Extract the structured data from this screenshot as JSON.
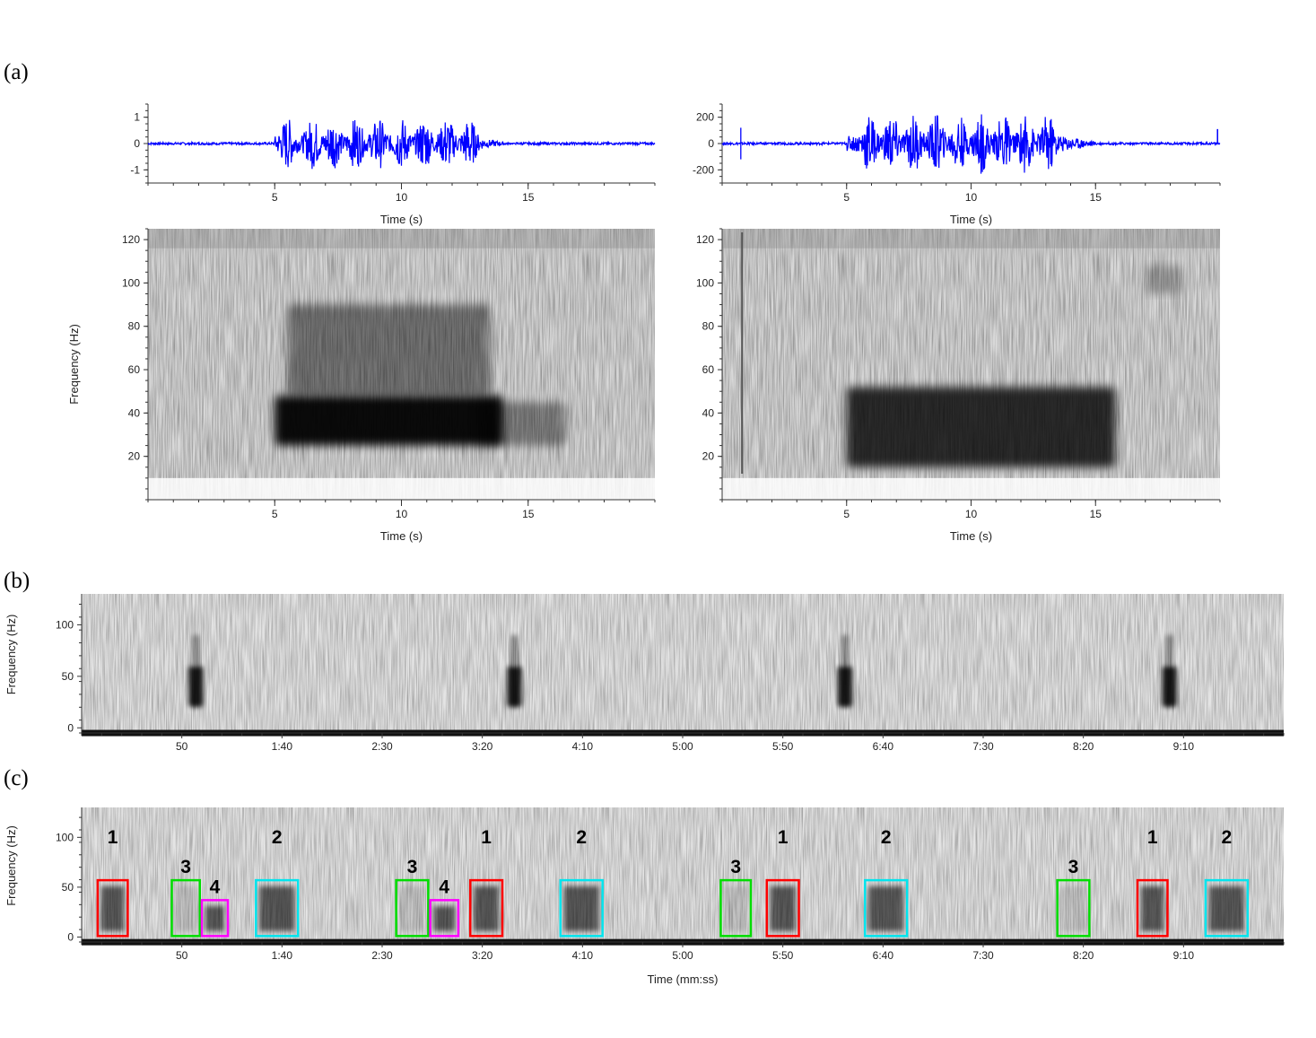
{
  "panel_labels": [
    "(a)",
    "(b)",
    "(c)"
  ],
  "chart_data": [
    {
      "panel": "(a)",
      "position": "top-left",
      "type": "line",
      "description": "waveform",
      "xlabel": "Time (s)",
      "ylabel": "",
      "xlim": [
        0,
        20
      ],
      "ylim": [
        -1.5,
        1.5
      ],
      "xticks": [
        5,
        10,
        15
      ],
      "yticks": [
        1,
        0,
        -1
      ],
      "series": [
        {
          "color": "#0000ff",
          "signal_x": [
            5.0,
            14.5
          ],
          "peak_amplitude": 1.0,
          "bursts_x": [
            5.5,
            6.5,
            7.3,
            8.2,
            9.1,
            10.0,
            10.9,
            11.8,
            12.7
          ]
        }
      ]
    },
    {
      "panel": "(a)",
      "position": "top-right",
      "type": "line",
      "description": "waveform",
      "xlabel": "Time (s)",
      "ylabel": "",
      "xlim": [
        0,
        20
      ],
      "ylim": [
        -300,
        300
      ],
      "xticks": [
        5,
        10,
        15
      ],
      "yticks": [
        200,
        0,
        -200
      ],
      "series": [
        {
          "color": "#0000ff",
          "signal_x": [
            5.0,
            15.5
          ],
          "peak_amplitude": 230,
          "bursts_x": [
            5.9,
            6.8,
            7.7,
            8.6,
            9.5,
            10.4,
            11.3,
            12.2,
            13.1
          ]
        }
      ]
    },
    {
      "panel": "(a)",
      "position": "bottom-left",
      "type": "heatmap",
      "description": "spectrogram",
      "xlabel": "Time (s)",
      "ylabel": "Frequency (Hz)",
      "xlim": [
        0,
        20
      ],
      "ylim": [
        0,
        125
      ],
      "xticks": [
        5,
        10,
        15
      ],
      "yticks": [
        120,
        100,
        80,
        60,
        40,
        20
      ],
      "energy": [
        {
          "t0": 5.0,
          "t1": 14.0,
          "f0": 25,
          "f1": 48,
          "intensity": 0.95
        },
        {
          "t0": 5.5,
          "t1": 13.5,
          "f0": 48,
          "f1": 90,
          "intensity": 0.45
        },
        {
          "t0": 13.0,
          "t1": 16.5,
          "f0": 25,
          "f1": 45,
          "intensity": 0.4
        }
      ]
    },
    {
      "panel": "(a)",
      "position": "bottom-right",
      "type": "heatmap",
      "description": "spectrogram",
      "xlabel": "Time (s)",
      "ylabel": "",
      "xlim": [
        0,
        20
      ],
      "ylim": [
        0,
        125
      ],
      "xticks": [
        5,
        10,
        15
      ],
      "yticks": [
        120,
        100,
        80,
        60,
        40,
        20
      ],
      "energy": [
        {
          "t0": 5.0,
          "t1": 15.8,
          "f0": 15,
          "f1": 52,
          "intensity": 0.8
        },
        {
          "t0": 17.0,
          "t1": 18.5,
          "f0": 95,
          "f1": 108,
          "intensity": 0.25
        }
      ]
    },
    {
      "panel": "(b)",
      "type": "heatmap",
      "description": "long spectrogram",
      "xlabel": "",
      "ylabel": "Frequency (Hz)",
      "xlim": [
        0,
        600
      ],
      "ylim": [
        -5,
        130
      ],
      "xticks": [
        "50",
        "1:40",
        "2:30",
        "3:20",
        "4:10",
        "5:00",
        "5:50",
        "6:40",
        "7:30",
        "8:20",
        "9:10"
      ],
      "xtick_seconds": [
        50,
        100,
        150,
        200,
        250,
        300,
        350,
        400,
        450,
        500,
        550
      ],
      "yticks": [
        100,
        50,
        0
      ],
      "calls_seconds": [
        57,
        216,
        381,
        543
      ]
    },
    {
      "panel": "(c)",
      "type": "heatmap",
      "description": "long spectrogram with annotated calls",
      "xlabel": "Time (mm:ss)",
      "ylabel": "Frequency (Hz)",
      "xlim": [
        0,
        600
      ],
      "ylim": [
        -5,
        130
      ],
      "xticks": [
        "50",
        "1:40",
        "2:30",
        "3:20",
        "4:10",
        "5:00",
        "5:50",
        "6:40",
        "7:30",
        "8:20",
        "9:10"
      ],
      "xtick_seconds": [
        50,
        100,
        150,
        200,
        250,
        300,
        350,
        400,
        450,
        500,
        550
      ],
      "yticks": [
        100,
        50,
        0
      ],
      "annotations": [
        {
          "label": "1",
          "t0": 8,
          "t1": 23,
          "color": "#ff0000"
        },
        {
          "label": "3",
          "t0": 45,
          "t1": 59,
          "color": "#00dd00"
        },
        {
          "label": "4",
          "t0": 60,
          "t1": 73,
          "color": "#ff00ff"
        },
        {
          "label": "2",
          "t0": 87,
          "t1": 108,
          "color": "#00e5ee"
        },
        {
          "label": "3",
          "t0": 157,
          "t1": 173,
          "color": "#00dd00"
        },
        {
          "label": "4",
          "t0": 174,
          "t1": 188,
          "color": "#ff00ff"
        },
        {
          "label": "1",
          "t0": 194,
          "t1": 210,
          "color": "#ff0000"
        },
        {
          "label": "2",
          "t0": 239,
          "t1": 260,
          "color": "#00e5ee"
        },
        {
          "label": "3",
          "t0": 319,
          "t1": 334,
          "color": "#00dd00"
        },
        {
          "label": "1",
          "t0": 342,
          "t1": 358,
          "color": "#ff0000"
        },
        {
          "label": "2",
          "t0": 391,
          "t1": 412,
          "color": "#00e5ee"
        },
        {
          "label": "3",
          "t0": 487,
          "t1": 503,
          "color": "#00dd00"
        },
        {
          "label": "1",
          "t0": 527,
          "t1": 542,
          "color": "#ff0000"
        },
        {
          "label": "2",
          "t0": 561,
          "t1": 582,
          "color": "#00e5ee"
        }
      ]
    }
  ]
}
